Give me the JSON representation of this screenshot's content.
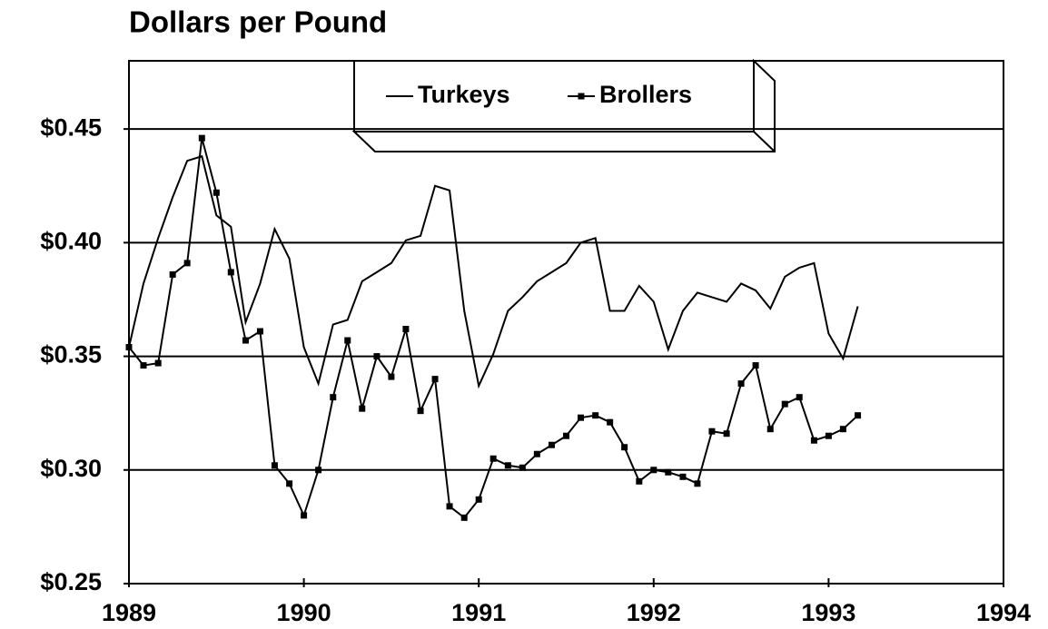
{
  "chart_data": {
    "type": "line",
    "title": "Dollars per Pound",
    "x": [
      1989,
      1989.083,
      1989.167,
      1989.25,
      1989.333,
      1989.417,
      1989.5,
      1989.583,
      1989.667,
      1989.75,
      1989.833,
      1989.917,
      1990,
      1990.083,
      1990.167,
      1990.25,
      1990.333,
      1990.417,
      1990.5,
      1990.583,
      1990.667,
      1990.75,
      1990.833,
      1990.917,
      1991,
      1991.083,
      1991.167,
      1991.25,
      1991.333,
      1991.417,
      1991.5,
      1991.583,
      1991.667,
      1991.75,
      1991.833,
      1991.917,
      1992,
      1992.083,
      1992.167,
      1992.25,
      1992.333,
      1992.417,
      1992.5,
      1992.583,
      1992.667,
      1992.75,
      1992.833,
      1992.917,
      1993,
      1993.083,
      1993.167
    ],
    "series": [
      {
        "name": "Turkeys",
        "color": "#000000",
        "marker": "none",
        "values": [
          0.354,
          0.382,
          0.402,
          0.42,
          0.436,
          0.438,
          0.412,
          0.407,
          0.365,
          0.382,
          0.406,
          0.393,
          0.354,
          0.338,
          0.364,
          0.366,
          0.383,
          0.387,
          0.391,
          0.401,
          0.403,
          0.425,
          0.423,
          0.37,
          0.337,
          0.351,
          0.37,
          0.376,
          0.383,
          0.387,
          0.391,
          0.4,
          0.402,
          0.37,
          0.37,
          0.381,
          0.374,
          0.353,
          0.37,
          0.378,
          0.376,
          0.374,
          0.382,
          0.379,
          0.371,
          0.385,
          0.389,
          0.391,
          0.36,
          0.349,
          0.372
        ]
      },
      {
        "name": "Brollers",
        "color": "#000000",
        "marker": "square",
        "values": [
          0.354,
          0.346,
          0.347,
          0.386,
          0.391,
          0.446,
          0.422,
          0.387,
          0.357,
          0.361,
          0.302,
          0.294,
          0.28,
          0.3,
          0.332,
          0.357,
          0.327,
          0.35,
          0.341,
          0.362,
          0.326,
          0.34,
          0.284,
          0.279,
          0.287,
          0.305,
          0.302,
          0.301,
          0.307,
          0.311,
          0.315,
          0.323,
          0.324,
          0.321,
          0.31,
          0.295,
          0.3,
          0.299,
          0.297,
          0.294,
          0.317,
          0.316,
          0.338,
          0.346,
          0.318,
          0.329,
          0.332,
          0.313,
          0.315,
          0.318,
          0.324
        ]
      }
    ],
    "xlim": [
      1989,
      1994
    ],
    "xticks": [
      1989,
      1990,
      1991,
      1992,
      1993,
      1994
    ],
    "ylim": [
      0.25,
      0.48
    ],
    "yticks": [
      {
        "value": 0.25,
        "label": "$0.25"
      },
      {
        "value": 0.3,
        "label": "$0.30"
      },
      {
        "value": 0.35,
        "label": "$0.35"
      },
      {
        "value": 0.4,
        "label": "$0.40"
      },
      {
        "value": 0.45,
        "label": "$0.45"
      }
    ],
    "grid": true,
    "legend": "top"
  }
}
